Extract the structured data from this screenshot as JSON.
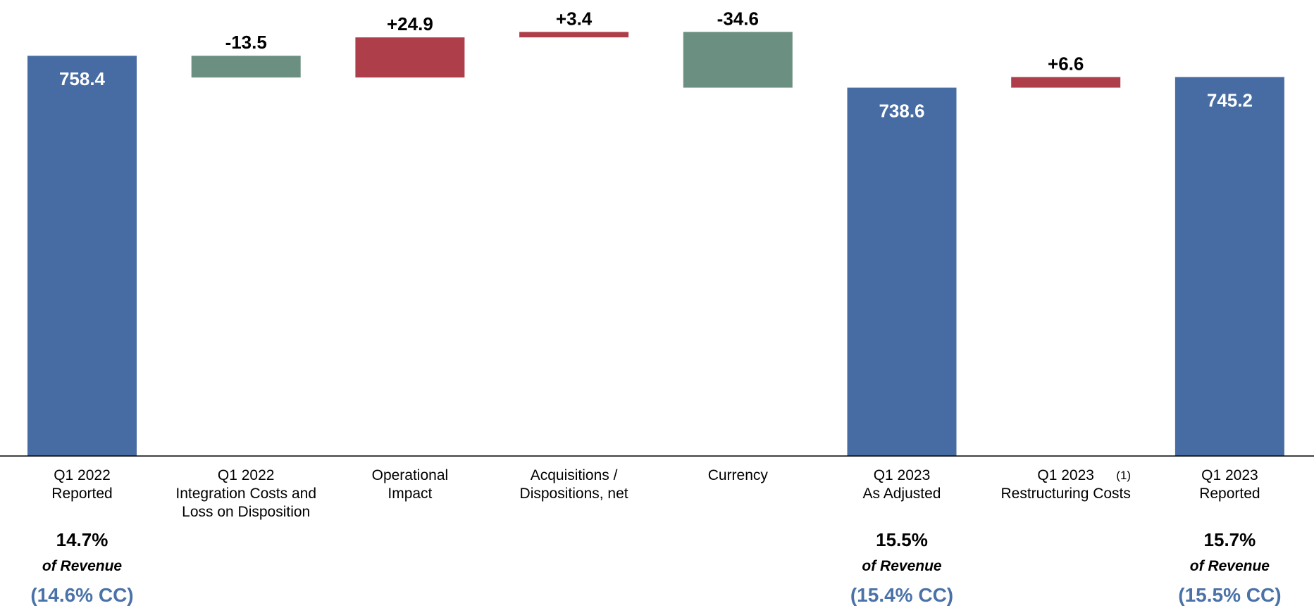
{
  "chart_data": {
    "type": "waterfall",
    "categories": [
      [
        "Q1 2022",
        "Reported"
      ],
      [
        "Q1 2022",
        "Integration Costs and",
        "Loss on Disposition"
      ],
      [
        "Operational",
        "Impact"
      ],
      [
        "Acquisitions /",
        "Dispositions, net"
      ],
      [
        "Currency"
      ],
      [
        "Q1 2023",
        "As Adjusted"
      ],
      [
        "Q1 2023",
        "Restructuring Costs"
      ],
      [
        "Q1 2023",
        "Reported"
      ]
    ],
    "category_footnotes": [
      null,
      null,
      null,
      null,
      null,
      null,
      "(1)",
      null
    ],
    "measure": [
      "total",
      "relative",
      "relative",
      "relative",
      "relative",
      "total",
      "relative",
      "total"
    ],
    "values": [
      758.4,
      -13.5,
      24.9,
      3.4,
      -34.6,
      738.6,
      6.6,
      745.2
    ],
    "value_labels": [
      "758.4",
      "-13.5",
      "+24.9",
      "+3.4",
      "-34.6",
      "738.6",
      "+6.6",
      "745.2"
    ],
    "colors": {
      "total": "#476ca3",
      "increase": "#ae3f4a",
      "decrease": "#6b8f80"
    },
    "ylim": [
      510,
      793
    ],
    "notes": [
      {
        "pct": "14.7%",
        "text": "of Revenue",
        "cc": "(14.6% CC)"
      },
      null,
      null,
      null,
      null,
      {
        "pct": "15.5%",
        "text": "of Revenue",
        "cc": "(15.4% CC)"
      },
      null,
      {
        "pct": "15.7%",
        "text": "of Revenue",
        "cc": "(15.5% CC)"
      }
    ]
  }
}
